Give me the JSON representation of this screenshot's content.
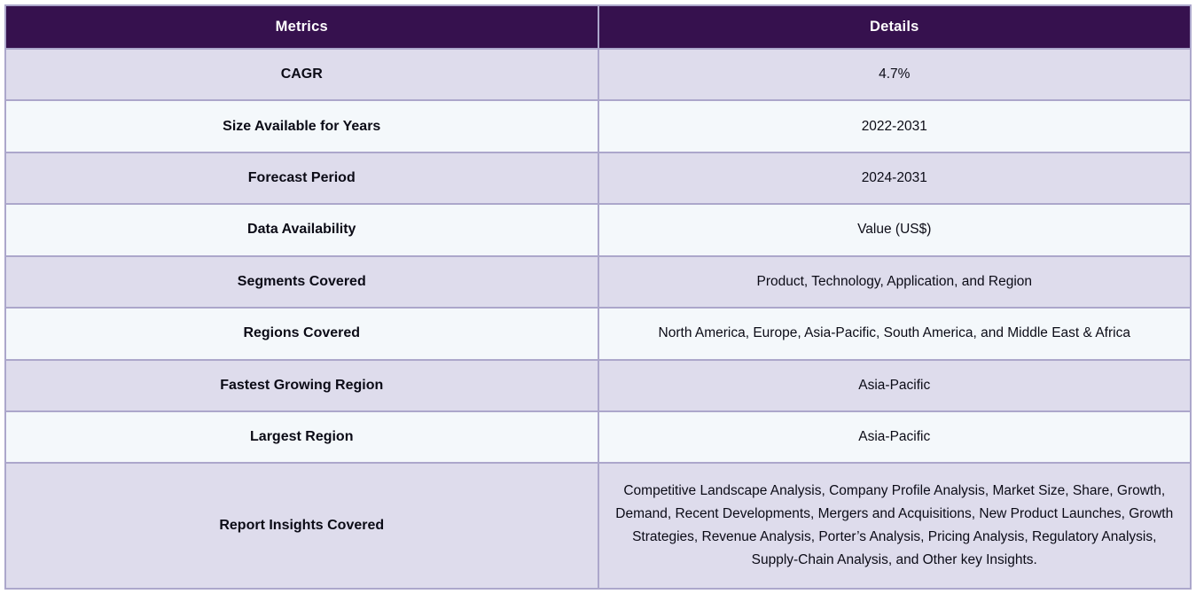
{
  "table": {
    "title": "report-scope-table",
    "columns": [
      {
        "label": "Metrics"
      },
      {
        "label": "Details"
      }
    ],
    "rows": [
      {
        "metric": "CAGR",
        "detail": "4.7%"
      },
      {
        "metric": "Size Available for Years",
        "detail": "2022-2031"
      },
      {
        "metric": "Forecast Period",
        "detail": "2024-2031"
      },
      {
        "metric": "Data Availability",
        "detail": "Value (US$)"
      },
      {
        "metric": "Segments Covered",
        "detail": "Product, Technology, Application, and Region"
      },
      {
        "metric": "Regions Covered",
        "detail": "North America, Europe, Asia-Pacific, South America, and Middle East & Africa"
      },
      {
        "metric": "Fastest Growing Region",
        "detail": "Asia-Pacific"
      },
      {
        "metric": "Largest Region",
        "detail": "Asia-Pacific"
      },
      {
        "metric": "Report Insights Covered",
        "detail": "Competitive Landscape Analysis, Company Profile Analysis, Market Size, Share, Growth, Demand, Recent Developments, Mergers and Acquisitions, New Product Launches, Growth Strategies, Revenue Analysis, Porter’s Analysis, Pricing Analysis, Regulatory Analysis, Supply-Chain Analysis, and Other key Insights."
      }
    ],
    "colors": {
      "header_bg": "#36114e",
      "header_text": "#ffffff",
      "row_lavender_bg": "#dedcec",
      "row_light_bg": "#f4f8fb",
      "grid_border": "#aca7cb",
      "body_text": "#0b0b16"
    }
  }
}
